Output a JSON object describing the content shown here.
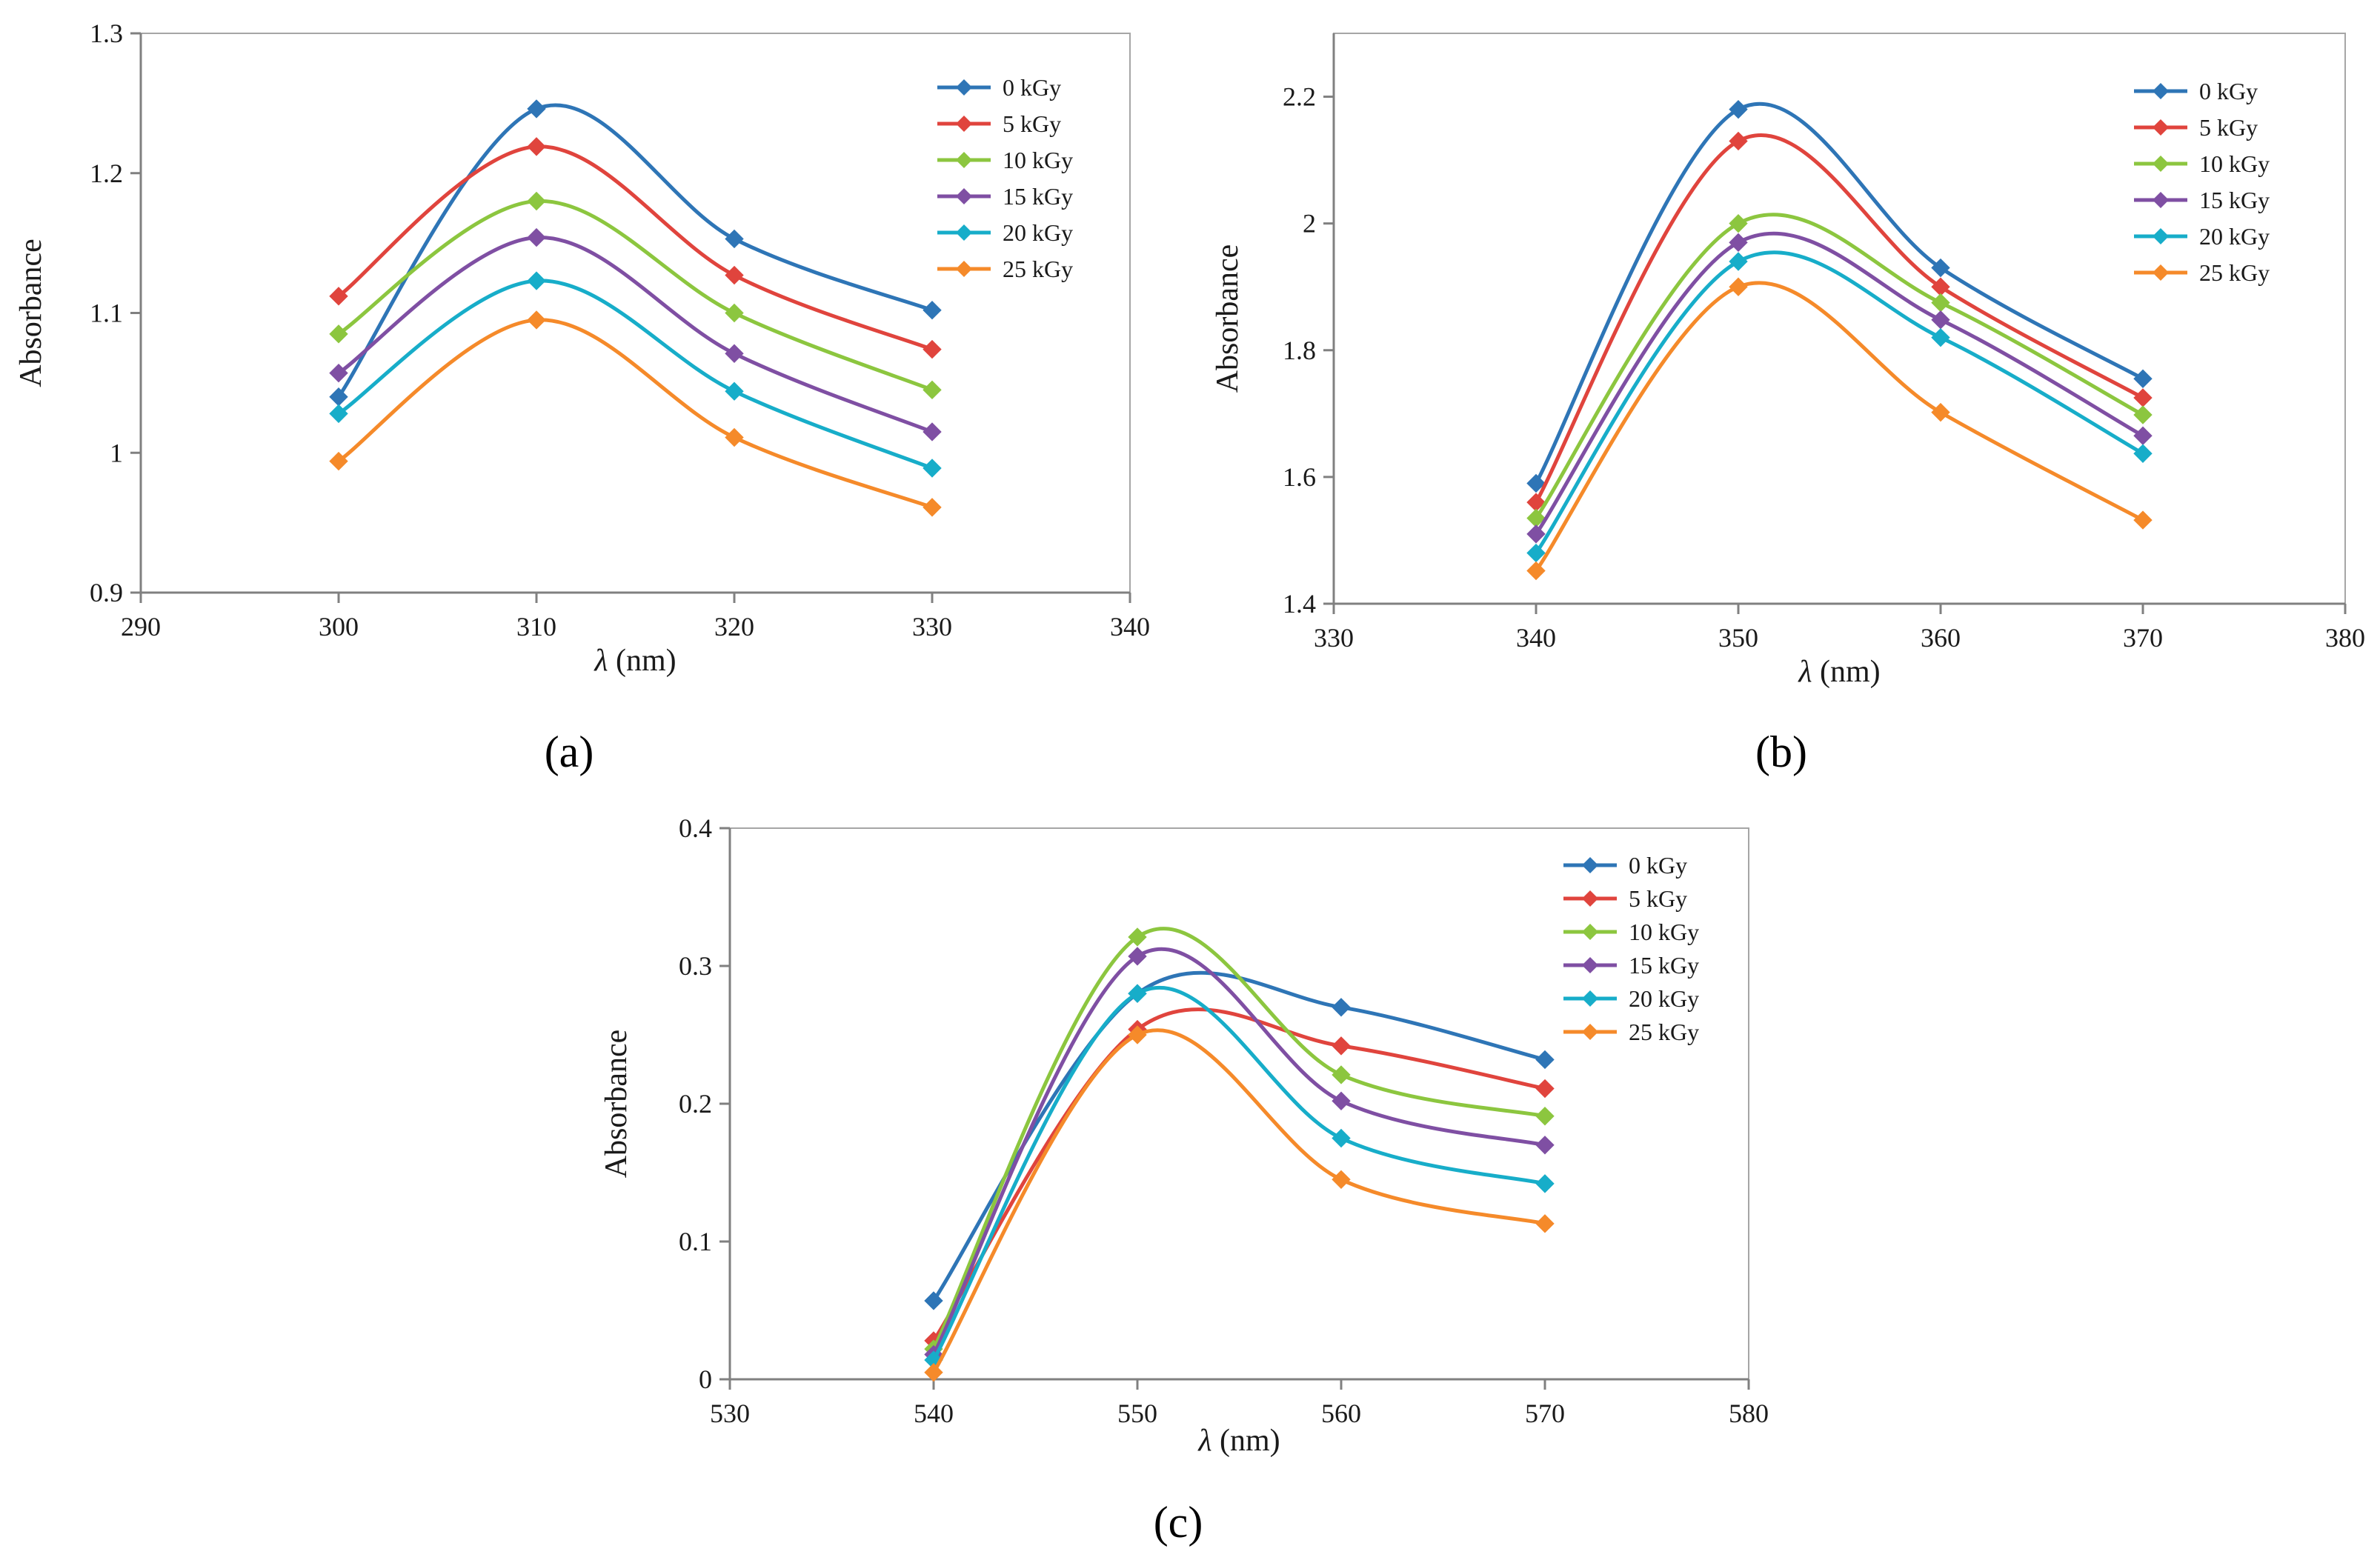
{
  "colors": {
    "0 kGy": "#2e75b6",
    "5 kGy": "#e0443d",
    "10 kGy": "#8cc63f",
    "15 kGy": "#7f4fa3",
    "20 kGy": "#17adc9",
    "25 kGy": "#f58a2a"
  },
  "chart_data": [
    {
      "type": "line",
      "panel_label": "(a)",
      "xlabel_symbol": "λ",
      "xlabel_unit": " (nm)",
      "ylabel": "Absorbance",
      "xlim": [
        290,
        340
      ],
      "ylim": [
        0.9,
        1.3
      ],
      "xticks": [
        290,
        300,
        310,
        320,
        330,
        340
      ],
      "xtick_labels": [
        "290",
        "300",
        "310",
        "320",
        "330",
        "340"
      ],
      "yticks": [
        0.9,
        1.0,
        1.1,
        1.2,
        1.3
      ],
      "ytick_labels": [
        "0.9",
        "1",
        "1.1",
        "1.2",
        "1.3"
      ],
      "legend_position": "top-right",
      "x": [
        300,
        310,
        320,
        330
      ],
      "series": [
        {
          "name": "0 kGy",
          "values": [
            1.04,
            1.246,
            1.153,
            1.102
          ]
        },
        {
          "name": "5 kGy",
          "values": [
            1.112,
            1.219,
            1.127,
            1.074
          ]
        },
        {
          "name": "10 kGy",
          "values": [
            1.085,
            1.18,
            1.1,
            1.045
          ]
        },
        {
          "name": "15 kGy",
          "values": [
            1.057,
            1.154,
            1.071,
            1.015
          ]
        },
        {
          "name": "20 kGy",
          "values": [
            1.028,
            1.123,
            1.044,
            0.989
          ]
        },
        {
          "name": "25 kGy",
          "values": [
            0.994,
            1.095,
            1.011,
            0.961
          ]
        }
      ]
    },
    {
      "type": "line",
      "panel_label": "(b)",
      "xlabel_symbol": "λ",
      "xlabel_unit": " (nm)",
      "ylabel": "Absorbance",
      "xlim": [
        330,
        380
      ],
      "ylim": [
        1.4,
        2.3
      ],
      "xticks": [
        330,
        340,
        350,
        360,
        370,
        380
      ],
      "xtick_labels": [
        "330",
        "340",
        "350",
        "360",
        "370",
        "380"
      ],
      "yticks": [
        1.4,
        1.6,
        1.8,
        2.0,
        2.2
      ],
      "ytick_labels": [
        "1.4",
        "1.6",
        "1.8",
        "2",
        "2.2"
      ],
      "legend_position": "top-right",
      "x": [
        340,
        350,
        360,
        370
      ],
      "series": [
        {
          "name": "0 kGy",
          "values": [
            1.59,
            2.18,
            1.93,
            1.755
          ]
        },
        {
          "name": "5 kGy",
          "values": [
            1.56,
            2.13,
            1.9,
            1.725
          ]
        },
        {
          "name": "10 kGy",
          "values": [
            1.535,
            2.0,
            1.875,
            1.698
          ]
        },
        {
          "name": "15 kGy",
          "values": [
            1.51,
            1.97,
            1.848,
            1.665
          ]
        },
        {
          "name": "20 kGy",
          "values": [
            1.48,
            1.94,
            1.82,
            1.637
          ]
        },
        {
          "name": "25 kGy",
          "values": [
            1.452,
            1.9,
            1.702,
            1.532
          ]
        }
      ]
    },
    {
      "type": "line",
      "panel_label": "(c)",
      "xlabel_symbol": "λ",
      "xlabel_unit": " (nm)",
      "ylabel": "Absorbance",
      "xlim": [
        530,
        580
      ],
      "ylim": [
        0,
        0.4
      ],
      "xticks": [
        530,
        540,
        550,
        560,
        570,
        580
      ],
      "xtick_labels": [
        "530",
        "540",
        "550",
        "560",
        "570",
        "580"
      ],
      "yticks": [
        0,
        0.1,
        0.2,
        0.3,
        0.4
      ],
      "ytick_labels": [
        "0",
        "0.1",
        "0.2",
        "0.3",
        "0.4"
      ],
      "legend_position": "top-right",
      "x": [
        540,
        550,
        560,
        570
      ],
      "series": [
        {
          "name": "0 kGy",
          "values": [
            0.057,
            0.28,
            0.27,
            0.232
          ]
        },
        {
          "name": "5 kGy",
          "values": [
            0.028,
            0.254,
            0.242,
            0.211
          ]
        },
        {
          "name": "10 kGy",
          "values": [
            0.022,
            0.321,
            0.221,
            0.191
          ]
        },
        {
          "name": "15 kGy",
          "values": [
            0.018,
            0.307,
            0.202,
            0.17
          ]
        },
        {
          "name": "20 kGy",
          "values": [
            0.014,
            0.28,
            0.175,
            0.142
          ]
        },
        {
          "name": "25 kGy",
          "values": [
            0.005,
            0.25,
            0.145,
            0.113
          ]
        }
      ]
    }
  ]
}
